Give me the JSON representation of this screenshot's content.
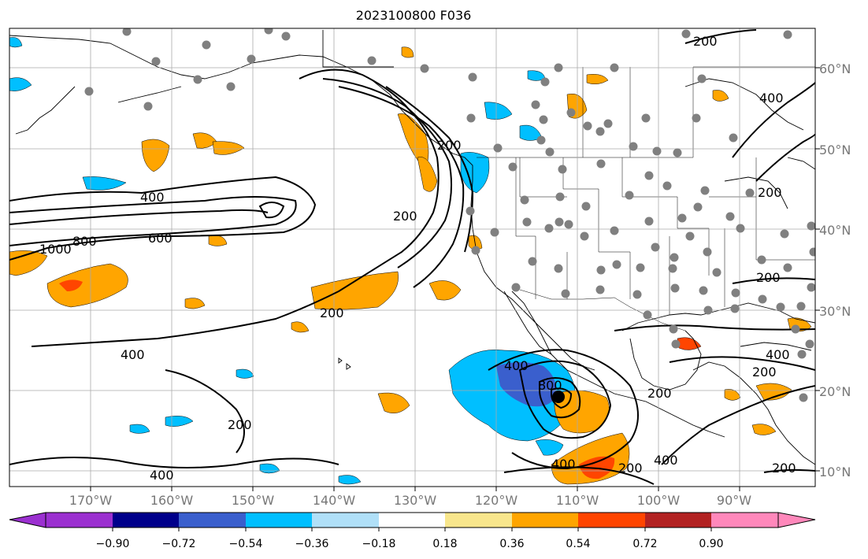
{
  "title": "2023100800 F036",
  "map": {
    "lon_labels": [
      "170°W",
      "160°W",
      "150°W",
      "140°W",
      "130°W",
      "120°W",
      "110°W",
      "100°W",
      "90°W"
    ],
    "lat_labels": [
      "60°N",
      "50°N",
      "40°N",
      "30°N",
      "20°N",
      "10°N"
    ],
    "contour_labels": [
      "200",
      "400",
      "600",
      "800",
      "1000",
      "200",
      "400",
      "200",
      "200",
      "400",
      "400",
      "200",
      "200",
      "800",
      "400",
      "200",
      "400",
      "200",
      "200",
      "200",
      "400",
      "400",
      "200"
    ]
  },
  "colorbar": {
    "tick_labels": [
      "−0.90",
      "−0.72",
      "−0.54",
      "−0.36",
      "−0.18",
      "0.18",
      "0.36",
      "0.54",
      "0.72",
      "0.90"
    ],
    "colors": [
      "#9b30d0",
      "#00008b",
      "#3a5fcd",
      "#00bfff",
      "#b0e0f8",
      "#ffffff",
      "#f8e68c",
      "#ffa500",
      "#ff4500",
      "#b22222",
      "#ff88bb"
    ]
  },
  "colors": {
    "land_outline": "#000000",
    "grid": "#aaaaaa",
    "station": "#808080",
    "positive_light": "#f8e68c",
    "positive": "#ffa500",
    "positive_strong": "#ff4500",
    "negative": "#00bfff",
    "negative_strong": "#3a5fcd"
  }
}
